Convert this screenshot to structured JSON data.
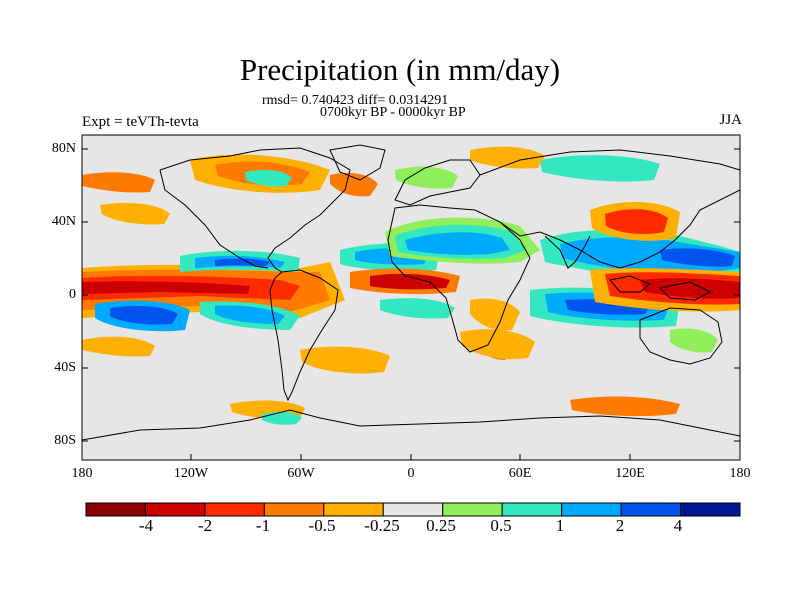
{
  "title": "Precipitation (in mm/day)",
  "stats_line": "rmsd= 0.740423 diff= 0.0314291",
  "period_line": "0700kyr BP - 0000kyr BP",
  "experiment_label": "Expt = teVTh-tevta",
  "season_label": "JJA",
  "lat_ticks": [
    "80N",
    "40N",
    "0",
    "40S",
    "80S"
  ],
  "lon_ticks": [
    "180",
    "120W",
    "60W",
    "0",
    "60E",
    "120E",
    "180"
  ],
  "colorbar": {
    "labels": [
      "-4",
      "-2",
      "-1",
      "-0.5",
      "-0.25",
      "0.25",
      "0.5",
      "1",
      "2",
      "4"
    ],
    "colors": [
      "#8b0000",
      "#cc0000",
      "#ff2a00",
      "#ff7a00",
      "#ffb000",
      "#e6e6e6",
      "#90ee5a",
      "#33e8c0",
      "#00aaff",
      "#0055ee",
      "#00178f"
    ]
  },
  "colors": {
    "no_change": "#e6e6e6",
    "coast": "#000000"
  }
}
